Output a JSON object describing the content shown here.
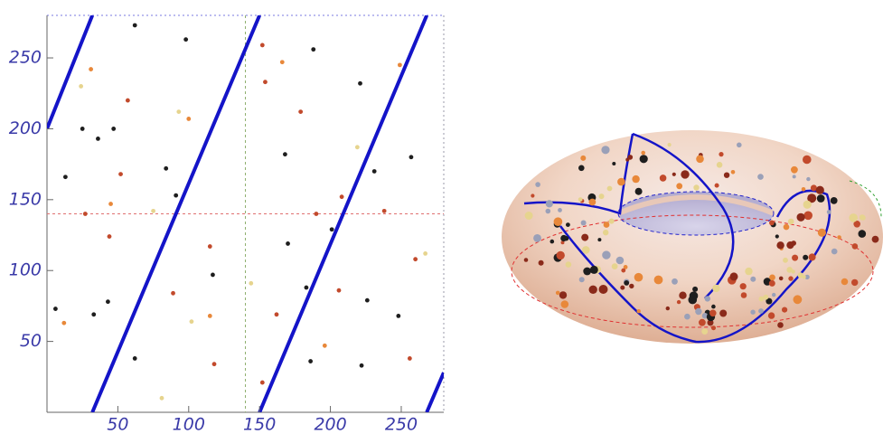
{
  "chart_data": {
    "type": "scatter",
    "xlim": [
      0,
      280
    ],
    "ylim": [
      0,
      280
    ],
    "xticks": [
      50,
      100,
      150,
      200,
      250
    ],
    "yticks": [
      50,
      100,
      150,
      200,
      250
    ],
    "hline": 140,
    "vline": 140,
    "series": [
      {
        "color": "#1e1e1e",
        "x": [
          62,
          98,
          25,
          47,
          36,
          13,
          84,
          91,
          117,
          6,
          33,
          43,
          62,
          188,
          221,
          168,
          231,
          257,
          201,
          170,
          183,
          226,
          248,
          186,
          222
        ],
        "values": [
          273,
          263,
          200,
          200,
          193,
          166,
          172,
          153,
          97,
          73,
          69,
          78,
          38,
          256,
          232,
          182,
          170,
          180,
          129,
          119,
          88,
          79,
          68,
          36,
          33
        ]
      },
      {
        "color": "#c24a2c",
        "x": [
          152,
          57,
          52,
          27,
          44,
          115,
          89,
          118,
          154,
          179,
          208,
          190,
          238,
          260,
          206,
          162,
          152,
          256
        ],
        "values": [
          259,
          220,
          168,
          140,
          124,
          117,
          84,
          34,
          233,
          212,
          152,
          140,
          142,
          108,
          86,
          69,
          21,
          38
        ]
      },
      {
        "color": "#e8883a",
        "x": [
          31,
          100,
          45,
          166,
          249,
          196,
          12,
          115
        ],
        "values": [
          242,
          207,
          147,
          247,
          245,
          47,
          63,
          68
        ]
      },
      {
        "color": "#e6d48e",
        "x": [
          24,
          93,
          75,
          102,
          144,
          219,
          267,
          81
        ],
        "values": [
          230,
          212,
          142,
          64,
          91,
          187,
          112,
          10
        ]
      }
    ],
    "lines": [
      {
        "color": "#1414c8",
        "x": [
          0,
          32
        ],
        "values": [
          200,
          280
        ]
      },
      {
        "color": "#1414c8",
        "x": [
          32,
          150
        ],
        "values": [
          0,
          280
        ]
      },
      {
        "color": "#1414c8",
        "x": [
          150,
          268
        ],
        "values": [
          0,
          280
        ]
      },
      {
        "color": "#1414c8",
        "x": [
          268,
          280
        ],
        "values": [
          0,
          28
        ]
      }
    ]
  }
}
